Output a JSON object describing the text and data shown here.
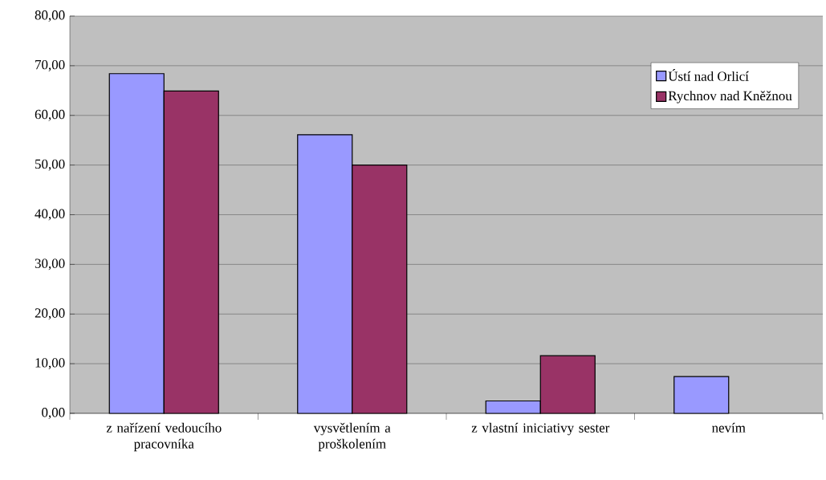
{
  "chart_data": {
    "type": "bar",
    "categories": [
      "z nařízení vedoucího pracovníka",
      "vysvětlením a proškolením",
      "z vlastní iniciativy sester",
      "nevím"
    ],
    "series": [
      {
        "name": "Ústí nad Orlicí",
        "color": "#9999ff",
        "values": [
          68.4,
          56.1,
          2.5,
          7.4
        ]
      },
      {
        "name": "Rychnov nad Kněžnou",
        "color": "#993366",
        "values": [
          64.9,
          50.0,
          11.6,
          null
        ]
      }
    ],
    "ylim": [
      0,
      80
    ],
    "yticks": [
      {
        "value": 0,
        "label": "0,00"
      },
      {
        "value": 10,
        "label": "10,00"
      },
      {
        "value": 20,
        "label": "20,00"
      },
      {
        "value": 30,
        "label": "30,00"
      },
      {
        "value": 40,
        "label": "40,00"
      },
      {
        "value": 50,
        "label": "50,00"
      },
      {
        "value": 60,
        "label": "60,00"
      },
      {
        "value": 70,
        "label": "70,00"
      },
      {
        "value": 80,
        "label": "80,00"
      }
    ],
    "grid": "y",
    "legend": "top right"
  }
}
